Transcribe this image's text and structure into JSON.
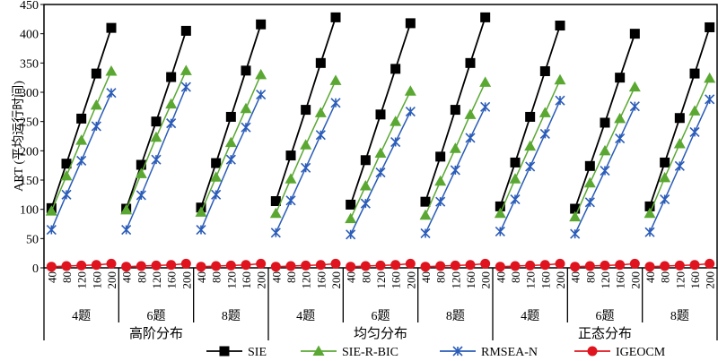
{
  "chart_data": {
    "type": "line",
    "title": "",
    "ylabel": "ART (平均运行时间)",
    "ylim": [
      0,
      450
    ],
    "yticks": [
      0,
      50,
      100,
      150,
      200,
      250,
      300,
      350,
      400,
      450
    ],
    "grid": false,
    "legend_position": "bottom",
    "x_level1_labels": [
      "40",
      "80",
      "120",
      "160",
      "200"
    ],
    "x_level2_labels": [
      "4题",
      "6题",
      "8题"
    ],
    "x_level3_labels": [
      "高阶分布",
      "均匀分布",
      "正态分布"
    ],
    "groups": [
      {
        "distribution": "高阶分布",
        "items": "4题"
      },
      {
        "distribution": "高阶分布",
        "items": "6题"
      },
      {
        "distribution": "高阶分布",
        "items": "8题"
      },
      {
        "distribution": "均匀分布",
        "items": "4题"
      },
      {
        "distribution": "均匀分布",
        "items": "6题"
      },
      {
        "distribution": "均匀分布",
        "items": "8题"
      },
      {
        "distribution": "正态分布",
        "items": "4题"
      },
      {
        "distribution": "正态分布",
        "items": "6题"
      },
      {
        "distribution": "正态分布",
        "items": "8题"
      }
    ],
    "series": [
      {
        "name": "SIE",
        "color": "#000000",
        "marker": "square",
        "values": [
          [
            102,
            178,
            255,
            332,
            410
          ],
          [
            101,
            176,
            250,
            326,
            405
          ],
          [
            103,
            179,
            258,
            337,
            416
          ],
          [
            114,
            192,
            270,
            350,
            428
          ],
          [
            108,
            184,
            262,
            340,
            418
          ],
          [
            113,
            190,
            270,
            350,
            428
          ],
          [
            105,
            180,
            258,
            336,
            414
          ],
          [
            101,
            174,
            248,
            325,
            400
          ],
          [
            105,
            180,
            256,
            332,
            411
          ]
        ]
      },
      {
        "name": "SIE-R-BIC",
        "color": "#5aa832",
        "marker": "triangle",
        "values": [
          [
            97,
            157,
            218,
            278,
            336
          ],
          [
            99,
            161,
            223,
            280,
            337
          ],
          [
            95,
            155,
            214,
            272,
            330
          ],
          [
            93,
            152,
            210,
            265,
            320
          ],
          [
            84,
            140,
            196,
            250,
            302
          ],
          [
            90,
            148,
            204,
            262,
            317
          ],
          [
            93,
            152,
            208,
            265,
            321
          ],
          [
            87,
            145,
            200,
            255,
            309
          ],
          [
            93,
            154,
            212,
            268,
            324
          ]
        ]
      },
      {
        "name": "RMSEA-N",
        "color": "#2a5cb8",
        "marker": "x",
        "values": [
          [
            65,
            125,
            183,
            242,
            299
          ],
          [
            65,
            124,
            185,
            247,
            309
          ],
          [
            65,
            125,
            185,
            240,
            296
          ],
          [
            60,
            115,
            171,
            227,
            282
          ],
          [
            57,
            110,
            163,
            215,
            267
          ],
          [
            59,
            113,
            167,
            222,
            275
          ],
          [
            62,
            117,
            173,
            229,
            286
          ],
          [
            58,
            112,
            166,
            221,
            276
          ],
          [
            61,
            117,
            174,
            232,
            288
          ]
        ]
      },
      {
        "name": "IGEOCM",
        "color": "#e0141e",
        "marker": "circle",
        "values": [
          [
            2,
            3,
            4,
            5,
            7
          ],
          [
            2,
            3,
            4,
            5,
            7
          ],
          [
            2,
            3,
            4,
            5,
            7
          ],
          [
            2,
            3,
            4,
            5,
            7
          ],
          [
            2,
            3,
            4,
            5,
            7
          ],
          [
            2,
            3,
            4,
            5,
            7
          ],
          [
            2,
            3,
            4,
            5,
            7
          ],
          [
            2,
            3,
            4,
            5,
            7
          ],
          [
            2,
            3,
            4,
            5,
            7
          ]
        ]
      }
    ]
  }
}
